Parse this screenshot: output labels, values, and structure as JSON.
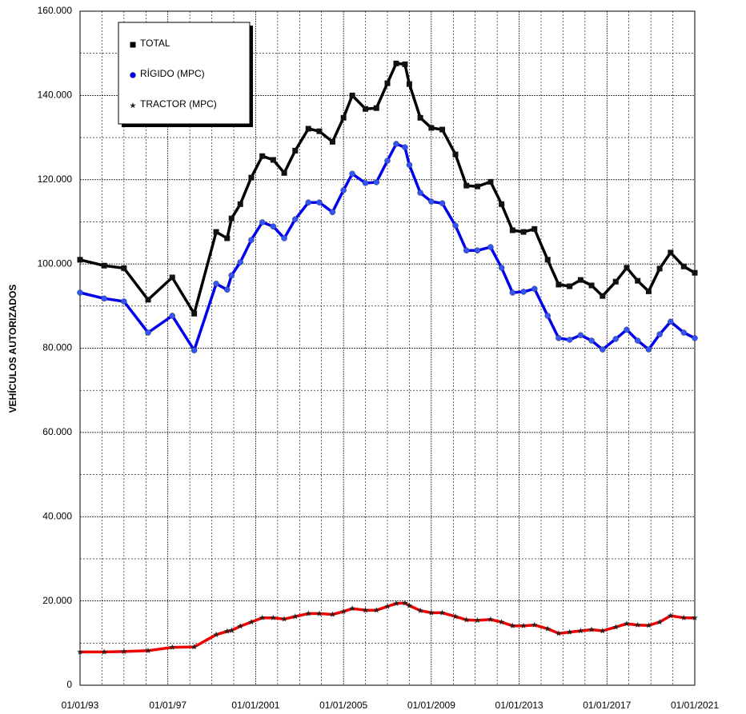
{
  "chart_data": {
    "type": "line",
    "y_label": "VEHÍCULOS  AUTORIZADOS",
    "x": [
      1993.0,
      1994.1,
      1995.0,
      1996.1,
      1997.2,
      1998.2,
      1999.2,
      1999.7,
      1999.9,
      2000.3,
      2000.8,
      2001.3,
      2001.8,
      2002.3,
      2002.8,
      2003.4,
      2003.9,
      2004.5,
      2005.0,
      2005.4,
      2006.0,
      2006.5,
      2007.0,
      2007.4,
      2007.8,
      2008.0,
      2008.5,
      2009.0,
      2009.5,
      2010.1,
      2010.6,
      2011.1,
      2011.7,
      2012.2,
      2012.7,
      2013.2,
      2013.7,
      2014.3,
      2014.8,
      2015.3,
      2015.8,
      2016.3,
      2016.8,
      2017.4,
      2017.9,
      2018.4,
      2018.9,
      2019.4,
      2019.9,
      2020.5,
      2021.0
    ],
    "series": [
      {
        "name": "TOTAL",
        "color": "#000000",
        "marker": "square",
        "values": [
          101000,
          99600,
          99000,
          91500,
          96800,
          88200,
          107600,
          106100,
          110800,
          114200,
          120500,
          125600,
          124700,
          121600,
          126900,
          132100,
          131500,
          129000,
          134700,
          140000,
          136800,
          137000,
          142900,
          147600,
          147400,
          142700,
          134700,
          132300,
          131900,
          126000,
          118600,
          118400,
          119500,
          114200,
          108000,
          107600,
          108300,
          101000,
          95100,
          94700,
          96200,
          94900,
          92400,
          95800,
          99100,
          96000,
          93500,
          98900,
          102700,
          99400,
          97900
        ]
      },
      {
        "name": "RÍGIDO (MPC)",
        "color": "#0000ee",
        "marker": "circle",
        "values": [
          93200,
          91800,
          91100,
          83700,
          87700,
          79500,
          95300,
          93900,
          97300,
          100400,
          105700,
          109900,
          108900,
          106100,
          110600,
          114600,
          114600,
          112300,
          117500,
          121400,
          119200,
          119400,
          124500,
          128500,
          127700,
          123500,
          116900,
          114800,
          114400,
          109100,
          103200,
          103200,
          104000,
          99100,
          93200,
          93400,
          94100,
          87700,
          82400,
          82000,
          83100,
          81800,
          79700,
          82200,
          84400,
          81800,
          79700,
          83300,
          86300,
          83700,
          82400
        ]
      },
      {
        "name": "TRACTOR (MPC)",
        "color": "#ee0000",
        "marker": "star",
        "values": [
          7900,
          7900,
          8000,
          8200,
          9000,
          9100,
          12000,
          12800,
          13000,
          14000,
          15000,
          16000,
          16000,
          15700,
          16300,
          17000,
          17000,
          16800,
          17500,
          18200,
          17800,
          17800,
          18700,
          19400,
          19500,
          18900,
          17700,
          17200,
          17200,
          16300,
          15500,
          15400,
          15600,
          15000,
          14100,
          14100,
          14300,
          13400,
          12300,
          12600,
          12900,
          13200,
          12900,
          13800,
          14600,
          14300,
          14200,
          15000,
          16500,
          16000,
          16000
        ]
      }
    ],
    "xlim": [
      1993,
      2021
    ],
    "xticks": [
      {
        "value": 1993,
        "label": "01/01/93"
      },
      {
        "value": 1997,
        "label": "01/01/97"
      },
      {
        "value": 2001,
        "label": "01/01/2001"
      },
      {
        "value": 2005,
        "label": "01/01/2005"
      },
      {
        "value": 2009,
        "label": "01/01/2009"
      },
      {
        "value": 2013,
        "label": "01/01/2013"
      },
      {
        "value": 2017,
        "label": "01/01/2017"
      },
      {
        "value": 2021,
        "label": "01/01/2021"
      }
    ],
    "ylim": [
      0,
      160000
    ],
    "yticks": [
      0,
      {
        "value": 20000,
        "label": "20.000"
      },
      {
        "value": 40000,
        "label": "40.000"
      },
      {
        "value": 60000,
        "label": "60.000"
      },
      {
        "value": 80000,
        "label": "80.000"
      },
      {
        "value": 100000,
        "label": "100.000"
      },
      {
        "value": 120000,
        "label": "120.000"
      },
      {
        "value": 140000,
        "label": "140.000"
      },
      {
        "value": 160000,
        "label": "160.000"
      }
    ],
    "grid": true,
    "legend": "upper left"
  }
}
